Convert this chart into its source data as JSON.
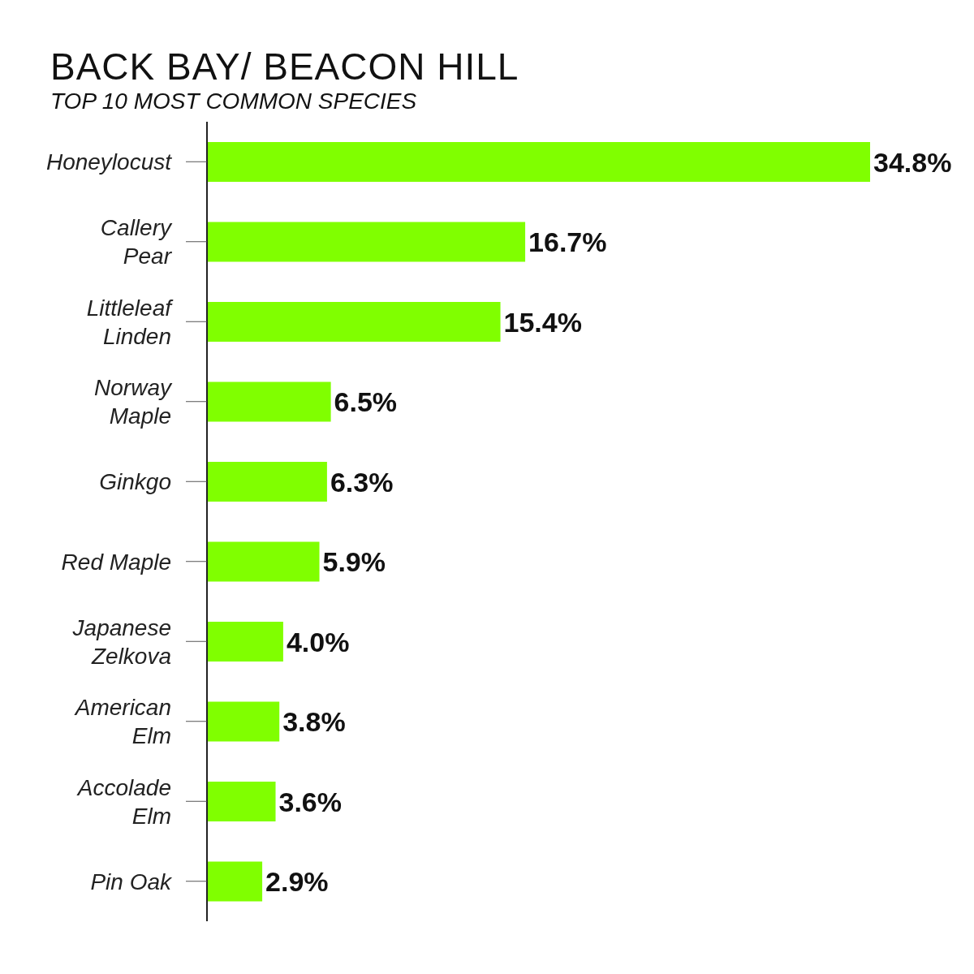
{
  "chart_data": {
    "type": "bar",
    "orientation": "horizontal",
    "title": "BACK BAY/ BEACON HILL",
    "subtitle": "TOP 10 MOST COMMON SPECIES",
    "categories": [
      "Honeylocust",
      "Callery\nPear",
      "Littleleaf\nLinden",
      "Norway\nMaple",
      "Ginkgo",
      "Red Maple",
      "Japanese\nZelkova",
      "American\nElm",
      "Accolade\nElm",
      "Pin Oak"
    ],
    "values": [
      34.8,
      16.7,
      15.4,
      6.5,
      6.3,
      5.9,
      4.0,
      3.8,
      3.6,
      2.9
    ],
    "value_labels": [
      "34.8%",
      "16.7%",
      "15.4%",
      "6.5%",
      "6.3%",
      "5.9%",
      "4.0%",
      "3.8%",
      "3.6%",
      "2.9%"
    ],
    "color": "#80ff00"
  }
}
